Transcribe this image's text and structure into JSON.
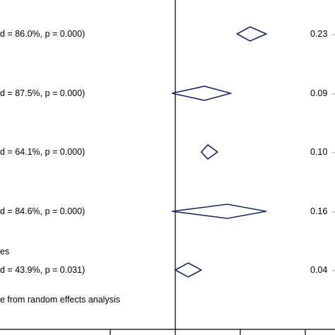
{
  "chart_data": {
    "type": "forest",
    "grid": false,
    "null_line": 0,
    "x_ticks": [
      -0.2,
      0,
      0.2,
      0.4
    ],
    "diamonds": [
      {
        "label": "d = 86.0%, p = 0.000)",
        "estimate": 0.23,
        "lower": 0.19,
        "upper": 0.28,
        "estimate_text": "0.23"
      },
      {
        "label": "d = 87.5%, p = 0.000)",
        "estimate": 0.09,
        "lower": -0.01,
        "upper": 0.17,
        "estimate_text": "0.09"
      },
      {
        "label": "d = 64.1%, p = 0.000)",
        "estimate": 0.1,
        "lower": 0.08,
        "upper": 0.13,
        "estimate_text": "0.10"
      },
      {
        "label": "d = 84.6%, p = 0.000)",
        "estimate": 0.16,
        "lower": -0.01,
        "upper": 0.28,
        "estimate_text": "0.16"
      },
      {
        "label": "d = 43.9%, p = 0.031)",
        "estimate": 0.04,
        "lower": 0.0,
        "upper": 0.08,
        "estimate_text": "0.04"
      }
    ],
    "annotations": {
      "section_fragment": "es",
      "footnote": "e from random effects analysis"
    },
    "colors": {
      "diamond": "#1b2a5c",
      "axis": "#000000"
    }
  }
}
